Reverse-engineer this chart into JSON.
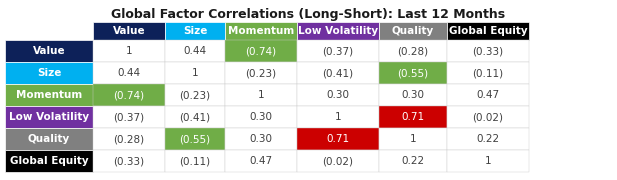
{
  "title": "Global Factor Correlations (Long-Short): Last 12 Months",
  "row_labels": [
    "Value",
    "Size",
    "Momentum",
    "Low Volatility",
    "Quality",
    "Global Equity"
  ],
  "col_labels": [
    "Value",
    "Size",
    "Momentum",
    "Low Volatility",
    "Quality",
    "Global Equity"
  ],
  "row_colors": [
    "#0d2159",
    "#00b0f0",
    "#70ad47",
    "#7030a0",
    "#808080",
    "#000000"
  ],
  "col_colors": [
    "#0d2159",
    "#00b0f0",
    "#70ad47",
    "#7030a0",
    "#808080",
    "#000000"
  ],
  "display_values": [
    [
      "1",
      "0.44",
      "(0.74)",
      "(0.37)",
      "(0.28)",
      "(0.33)"
    ],
    [
      "0.44",
      "1",
      "(0.23)",
      "(0.41)",
      "(0.55)",
      "(0.11)"
    ],
    [
      "(0.74)",
      "(0.23)",
      "1",
      "0.30",
      "0.30",
      "0.47"
    ],
    [
      "(0.37)",
      "(0.41)",
      "0.30",
      "1",
      "0.71",
      "(0.02)"
    ],
    [
      "(0.28)",
      "(0.55)",
      "0.30",
      "0.71",
      "1",
      "0.22"
    ],
    [
      "(0.33)",
      "(0.11)",
      "0.47",
      "(0.02)",
      "0.22",
      "1"
    ]
  ],
  "highlight_cells": [
    [
      2,
      0,
      "#70ad47",
      "#ffffff"
    ],
    [
      0,
      2,
      "#70ad47",
      "#ffffff"
    ],
    [
      1,
      4,
      "#70ad47",
      "#ffffff"
    ],
    [
      4,
      1,
      "#70ad47",
      "#ffffff"
    ],
    [
      3,
      4,
      "#cc0000",
      "#ffffff"
    ],
    [
      4,
      3,
      "#cc0000",
      "#ffffff"
    ]
  ],
  "background_color": "#ffffff",
  "col_label_text_color": "#ffffff",
  "row_label_text_color": "#ffffff",
  "cell_text_color": "#404040",
  "title_fontsize": 9,
  "cell_fontsize": 7.5,
  "label_fontsize": 7.5
}
